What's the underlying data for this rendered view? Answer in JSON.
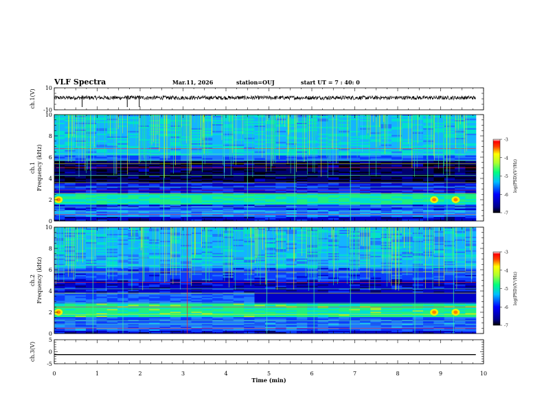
{
  "header": {
    "title": "VLF Spectra",
    "date": "Mar.11, 2026",
    "station": "station=OUJ",
    "start_ut": "start UT =  7 : 40: 0"
  },
  "chart_data": [
    {
      "type": "line",
      "panel": "ch1-waveform",
      "ylabel": "ch.1(V)",
      "ylim": [
        -10,
        10
      ],
      "yticks": [
        "10",
        "-10"
      ],
      "series": [
        {
          "values_summary": "noisy waveform centred near 0 V with occasional negative spikes"
        }
      ],
      "spikes_min": [
        0.65,
        1.7,
        1.98
      ],
      "color": "#000000"
    },
    {
      "type": "heatmap",
      "panel": "ch1-spectrogram",
      "ylabel": "Frequency (kHz)",
      "ylabel2": "ch.1",
      "ylim": [
        0,
        10
      ],
      "yticks": [
        "0",
        "2",
        "4",
        "6",
        "8",
        "10"
      ],
      "colorbar": {
        "label": "log(PSD)(V²/Hz)",
        "range": [
          -7,
          -3
        ],
        "ticks": [
          "-3",
          "-4",
          "-5",
          "-6",
          "-7"
        ]
      },
      "bright_bands_khz": [
        2.0,
        0.8,
        5.8
      ],
      "dark_band_khz": [
        3.5,
        5.5
      ],
      "data_end_min": 9.82
    },
    {
      "type": "heatmap",
      "panel": "ch2-spectrogram",
      "ylabel": "Frequency (kHz)",
      "ylabel2": "ch.2",
      "ylim": [
        0,
        10
      ],
      "yticks": [
        "0",
        "2",
        "4",
        "6",
        "8",
        "10"
      ],
      "colorbar": {
        "label": "log(PSD)(V²/Hz)",
        "range": [
          -7,
          -3
        ],
        "ticks": [
          "-3",
          "-4",
          "-5",
          "-6",
          "-7"
        ]
      },
      "bright_bands_khz": [
        2.0,
        3.2,
        0.8
      ],
      "data_end_min": 9.82
    },
    {
      "type": "line",
      "panel": "ch3-waveform",
      "ylabel": "ch.3(V)",
      "ylim": [
        -5,
        5
      ],
      "yticks": [
        "5",
        "0",
        "-5"
      ],
      "series": [
        {
          "values": [
            -1.2,
            -1.2
          ],
          "x": [
            0,
            9.82
          ]
        }
      ],
      "color": "#000000"
    }
  ],
  "xaxis": {
    "label": "Time (min)",
    "range": [
      0,
      10
    ],
    "ticks": [
      "0",
      "1",
      "2",
      "3",
      "4",
      "5",
      "6",
      "7",
      "8",
      "9",
      "10"
    ]
  }
}
